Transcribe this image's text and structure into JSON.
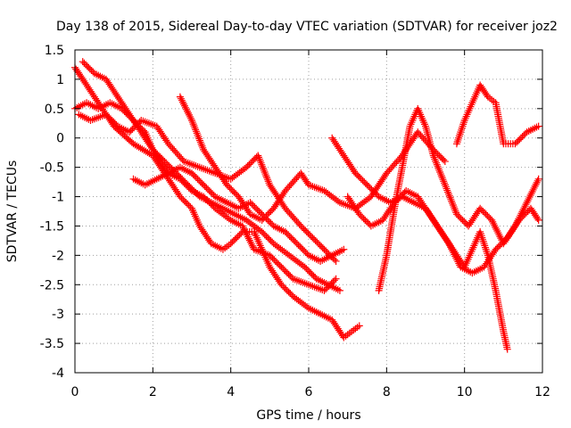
{
  "chart_data": {
    "type": "scatter",
    "title": "Day 138 of 2015, Sidereal Day-to-day VTEC variation (SDTVAR) for receiver joz2",
    "xlabel": "GPS time / hours",
    "ylabel": "SDTVAR / TECUs",
    "xlim": [
      0,
      12
    ],
    "ylim": [
      -4,
      1.5
    ],
    "xticks": [
      0,
      2,
      4,
      6,
      8,
      10,
      12
    ],
    "yticks": [
      1.5,
      1,
      0.5,
      0,
      -0.5,
      -1,
      -1.5,
      -2,
      -2.5,
      -3,
      -3.5,
      -4
    ],
    "grid": true,
    "marker": "+",
    "color": "#ff0000",
    "series": [
      {
        "x": [
          0.0,
          0.2,
          0.5,
          0.8,
          1.0,
          1.5,
          2.0,
          2.4,
          2.7,
          3.0,
          3.2,
          3.5,
          3.8,
          4.0,
          4.3,
          4.6,
          4.8,
          5.0,
          5.3,
          5.6,
          6.0,
          6.3,
          6.6,
          6.9,
          7.1,
          7.3
        ],
        "y": [
          1.2,
          1.0,
          0.7,
          0.4,
          0.2,
          -0.1,
          -0.3,
          -0.7,
          -1.0,
          -1.2,
          -1.5,
          -1.8,
          -1.9,
          -1.8,
          -1.6,
          -1.6,
          -1.9,
          -2.2,
          -2.5,
          -2.7,
          -2.9,
          -3.0,
          -3.1,
          -3.4,
          -3.3,
          -3.2
        ]
      },
      {
        "x": [
          0.2,
          0.5,
          0.8,
          1.0,
          1.3,
          1.6,
          2.0,
          2.4,
          2.7,
          3.0,
          3.3,
          3.6,
          4.0,
          4.3,
          4.6,
          5.0,
          5.3,
          5.6,
          6.0,
          6.4,
          6.7
        ],
        "y": [
          1.3,
          1.1,
          1.0,
          0.8,
          0.5,
          0.2,
          -0.2,
          -0.6,
          -0.7,
          -0.9,
          -1.0,
          -1.2,
          -1.4,
          -1.5,
          -1.9,
          -2.0,
          -2.2,
          -2.4,
          -2.5,
          -2.6,
          -2.4
        ]
      },
      {
        "x": [
          0.0,
          0.3,
          0.6,
          0.9,
          1.2,
          1.5,
          1.8,
          2.0,
          2.3,
          2.6,
          2.9,
          3.2,
          3.5,
          3.8,
          4.1,
          4.4,
          4.8,
          5.1,
          5.5,
          5.9,
          6.2,
          6.5,
          6.8
        ],
        "y": [
          0.5,
          0.6,
          0.5,
          0.6,
          0.5,
          0.3,
          0.1,
          -0.2,
          -0.4,
          -0.6,
          -0.8,
          -1.0,
          -1.1,
          -1.2,
          -1.3,
          -1.4,
          -1.6,
          -1.8,
          -2.0,
          -2.2,
          -2.4,
          -2.5,
          -2.6
        ]
      },
      {
        "x": [
          0.1,
          0.4,
          0.8,
          1.1,
          1.4,
          1.7,
          2.1,
          2.4,
          2.8,
          3.2,
          3.6,
          4.0,
          4.4,
          4.7,
          5.0,
          5.4,
          5.8,
          6.1,
          6.4,
          6.7
        ],
        "y": [
          0.4,
          0.3,
          0.4,
          0.2,
          0.1,
          0.3,
          0.2,
          -0.1,
          -0.4,
          -0.5,
          -0.6,
          -0.7,
          -0.5,
          -0.3,
          -0.8,
          -1.2,
          -1.5,
          -1.7,
          -1.9,
          -2.1
        ]
      },
      {
        "x": [
          2.7,
          3.0,
          3.3,
          3.6,
          3.9,
          4.2,
          4.5,
          4.8,
          5.1,
          5.4,
          5.8,
          6.0,
          6.4,
          6.8,
          7.2,
          7.6,
          8.0,
          8.4,
          8.8,
          9.2,
          9.5
        ],
        "y": [
          0.7,
          0.3,
          -0.2,
          -0.5,
          -0.8,
          -1.0,
          -1.3,
          -1.4,
          -1.2,
          -0.9,
          -0.6,
          -0.8,
          -0.9,
          -1.1,
          -1.2,
          -1.0,
          -0.6,
          -0.3,
          0.1,
          -0.2,
          -0.4
        ]
      },
      {
        "x": [
          1.5,
          1.8,
          2.1,
          2.4,
          2.7,
          3.0,
          3.3,
          3.6,
          3.9,
          4.2,
          4.5,
          4.8,
          5.1,
          5.4,
          5.7,
          6.0,
          6.3,
          6.6,
          6.9
        ],
        "y": [
          -0.7,
          -0.8,
          -0.7,
          -0.6,
          -0.5,
          -0.6,
          -0.8,
          -1.0,
          -1.1,
          -1.2,
          -1.1,
          -1.3,
          -1.5,
          -1.6,
          -1.8,
          -2.0,
          -2.1,
          -2.0,
          -1.9
        ]
      },
      {
        "x": [
          6.6,
          6.9,
          7.2,
          7.5,
          7.8,
          8.1,
          8.4,
          8.7,
          9.0,
          9.3,
          9.6,
          9.9,
          10.2,
          10.5,
          10.8,
          11.1,
          11.4,
          11.7,
          11.9
        ],
        "y": [
          0.0,
          -0.3,
          -0.6,
          -0.8,
          -1.0,
          -1.1,
          -1.0,
          -1.1,
          -1.2,
          -1.5,
          -1.8,
          -2.2,
          -2.3,
          -2.2,
          -1.9,
          -1.7,
          -1.4,
          -1.2,
          -1.4
        ]
      },
      {
        "x": [
          7.0,
          7.3,
          7.6,
          7.9,
          8.2,
          8.5,
          8.8,
          9.1,
          9.4,
          9.7,
          10.0,
          10.2,
          10.4,
          10.6,
          10.8,
          11.0,
          11.1
        ],
        "y": [
          -1.0,
          -1.3,
          -1.5,
          -1.4,
          -1.1,
          -0.9,
          -1.0,
          -1.3,
          -1.6,
          -1.9,
          -2.2,
          -1.9,
          -1.6,
          -2.0,
          -2.6,
          -3.3,
          -3.6
        ]
      },
      {
        "x": [
          7.8,
          8.0,
          8.2,
          8.4,
          8.6,
          8.8,
          9.0,
          9.2,
          9.5,
          9.8,
          10.1,
          10.4,
          10.7,
          11.0,
          11.3,
          11.6,
          11.9
        ],
        "y": [
          -2.6,
          -2.0,
          -1.2,
          -0.5,
          0.2,
          0.5,
          0.2,
          -0.3,
          -0.8,
          -1.3,
          -1.5,
          -1.2,
          -1.4,
          -1.8,
          -1.5,
          -1.1,
          -0.7
        ]
      },
      {
        "x": [
          9.8,
          10.0,
          10.2,
          10.4,
          10.6,
          10.8,
          11.0,
          11.3,
          11.6,
          11.9
        ],
        "y": [
          -0.1,
          0.3,
          0.6,
          0.9,
          0.7,
          0.6,
          -0.1,
          -0.1,
          0.1,
          0.2
        ]
      }
    ]
  }
}
